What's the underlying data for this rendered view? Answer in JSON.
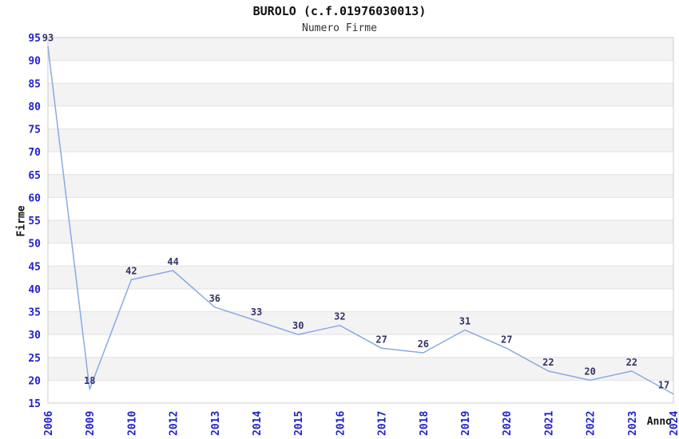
{
  "header": {
    "title": "BUROLO (c.f.01976030013)",
    "subtitle": "Numero Firme"
  },
  "chart_data": {
    "type": "line",
    "title": "BUROLO (c.f.01976030013)",
    "subtitle": "Numero Firme",
    "xlabel": "Anno",
    "ylabel": "Firme",
    "categories": [
      "2006",
      "2009",
      "2010",
      "2012",
      "2013",
      "2014",
      "2015",
      "2016",
      "2017",
      "2018",
      "2019",
      "2020",
      "2021",
      "2022",
      "2023",
      "2024"
    ],
    "values": [
      93,
      18,
      42,
      44,
      36,
      33,
      30,
      32,
      27,
      26,
      31,
      27,
      22,
      20,
      22,
      17
    ],
    "ylim": [
      15,
      95
    ],
    "ytick_step": 5,
    "grid": "horizontal-alternating-bands",
    "legend": "none",
    "point_labels": true,
    "colors": {
      "line": "#87abe3",
      "tick_label": "#2222cc",
      "point_label": "#333366",
      "band_gray": "#f3f3f3",
      "band_white": "#ffffff",
      "grid_line": "#e2e2e2",
      "plot_border": "#cccccc",
      "title": "#111111",
      "subtitle": "#333333",
      "axis_title": "#111111"
    }
  }
}
